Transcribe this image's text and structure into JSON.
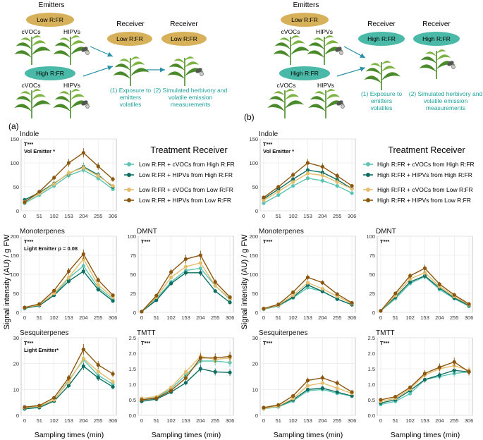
{
  "colors": {
    "low_ellipse": "#d7b05a",
    "high_ellipse": "#4bb9a8",
    "arrow": "#2c8fa8",
    "teal_text": "#1ea19a",
    "light_teal": "#5cc5b3",
    "dark_teal": "#0d6e61",
    "light_gold": "#e3bd6e",
    "dark_brown": "#8b560f",
    "plant": "#4a8a2a",
    "plant_light": "#7cb342"
  },
  "panel_a": {
    "label": "(a)",
    "diagram": {
      "emitters_title": "Emitters",
      "emitter_top": "Low R:FR",
      "emitter_bottom": "High R:FR",
      "cvocs": "cVOCs",
      "hipvs": "HIPVs",
      "receiver_title": "Receiver",
      "receiver_label": "Low R:FR",
      "step1": [
        "(1) Exposure to",
        "emitters",
        "volatiles"
      ],
      "step2": [
        "(2) Simulated herbivory and",
        "volatile emission",
        "measurements"
      ]
    },
    "legend": {
      "title": "Treatment Receiver",
      "entries": [
        "Low R:FR + cVOCs from High R:FR",
        "Low R:FR + HIPVs from High R:FR",
        "Low R:FR + cVOCs from Low R:FR",
        "Low R:FR + HIPVs from Low R:FR"
      ]
    }
  },
  "panel_b": {
    "label": "(b)",
    "diagram": {
      "emitters_title": "Emitters",
      "emitter_top": "Low R:FR",
      "emitter_bottom": "High R:FR",
      "cvocs": "cVOCs",
      "hipvs": "HIPVs",
      "receiver_title": "Receiver",
      "receiver_label": "High R:FR",
      "step1": [
        "(1) Exposure to",
        "emitters",
        "volatiles"
      ],
      "step2": [
        "(2) Simulated herbivory and",
        "volatile emission",
        "measurements"
      ]
    },
    "legend": {
      "title": "Treatment Receiver",
      "entries": [
        "High R:FR + cVOCs from High R:FR",
        "High R:FR + HIPVs from High R:FR",
        "High R:FR + cVOCs from Low R:FR",
        "High R:FR + HIPVs from Low R:FR"
      ]
    }
  },
  "shared_axes": {
    "ylabel": "Signal intensity (AU) / g FW",
    "xlabel": "Sampling times (min)"
  },
  "chart_data": [
    {
      "id": "a_indole",
      "type": "line",
      "title": "Indole",
      "annotations": [
        "T***",
        "Vol Emitter *"
      ],
      "x": [
        0,
        51,
        102,
        153,
        204,
        255,
        306
      ],
      "ylim": [
        0,
        150
      ],
      "yticks": [
        0,
        50,
        100,
        150
      ],
      "series": [
        {
          "name": "Low R:FR + cVOCs from High R:FR",
          "values": [
            16,
            33,
            52,
            74,
            85,
            68,
            45
          ]
        },
        {
          "name": "Low R:FR + HIPVs from High R:FR",
          "values": [
            23,
            38,
            57,
            78,
            92,
            75,
            50
          ]
        },
        {
          "name": "Low R:FR + cVOCs from Low R:FR",
          "values": [
            19,
            36,
            56,
            79,
            90,
            73,
            52
          ]
        },
        {
          "name": "Low R:FR + HIPVs from Low R:FR",
          "values": [
            18,
            40,
            69,
            100,
            121,
            93,
            66
          ]
        }
      ]
    },
    {
      "id": "a_mono",
      "type": "line",
      "title": "Monoterpenes",
      "annotations": [
        "T***",
        "Light Emitter p = 0.08"
      ],
      "x": [
        0,
        51,
        102,
        153,
        204,
        255,
        306
      ],
      "ylim": [
        0,
        200
      ],
      "yticks": [
        0,
        50,
        100,
        150,
        200
      ],
      "series": [
        {
          "name": "Low R:FR + cVOCs from High R:FR",
          "values": [
            10,
            18,
            45,
            90,
            122,
            65,
            35
          ]
        },
        {
          "name": "Low R:FR + HIPVs from High R:FR",
          "values": [
            11,
            18,
            45,
            82,
            108,
            60,
            30
          ]
        },
        {
          "name": "Low R:FR + cVOCs from Low R:FR",
          "values": [
            12,
            20,
            50,
            92,
            140,
            72,
            40
          ]
        },
        {
          "name": "Low R:FR + HIPVs from Low R:FR",
          "values": [
            13,
            22,
            57,
            108,
            153,
            85,
            45
          ]
        }
      ]
    },
    {
      "id": "a_dmnt",
      "type": "line",
      "title": "DMNT",
      "annotations": [
        "T***"
      ],
      "x": [
        0,
        51,
        102,
        153,
        204,
        255,
        306
      ],
      "ylim": [
        0,
        100
      ],
      "yticks": [
        0,
        25,
        50,
        75,
        100
      ],
      "series": [
        {
          "name": "Low R:FR + cVOCs from High R:FR",
          "values": [
            1,
            18,
            40,
            55,
            58,
            35,
            17
          ]
        },
        {
          "name": "Low R:FR + HIPVs from High R:FR",
          "values": [
            1,
            16,
            38,
            52,
            52,
            28,
            13
          ]
        },
        {
          "name": "Low R:FR + cVOCs from Low R:FR",
          "values": [
            1,
            20,
            46,
            60,
            65,
            35,
            18
          ]
        },
        {
          "name": "Low R:FR + HIPVs from Low R:FR",
          "values": [
            1,
            22,
            53,
            70,
            75,
            40,
            20
          ]
        }
      ]
    },
    {
      "id": "a_sesq",
      "type": "line",
      "title": "Sesquiterpenes",
      "annotations": [
        "T***",
        "Light Emitter*"
      ],
      "x": [
        0,
        51,
        102,
        153,
        204,
        255,
        306
      ],
      "ylim": [
        0,
        30
      ],
      "yticks": [
        0,
        10,
        20,
        30
      ],
      "series": [
        {
          "name": "Low R:FR + cVOCs from High R:FR",
          "values": [
            2.8,
            3.3,
            5.8,
            13.5,
            21.5,
            15.5,
            12
          ]
        },
        {
          "name": "Low R:FR + HIPVs from High R:FR",
          "values": [
            2.5,
            3.0,
            5.5,
            11.5,
            19,
            14.5,
            11
          ]
        },
        {
          "name": "Low R:FR + cVOCs from Low R:FR",
          "values": [
            3.0,
            3.5,
            6.0,
            13.0,
            22.0,
            17.0,
            13
          ]
        },
        {
          "name": "Low R:FR + HIPVs from Low R:FR",
          "values": [
            3.2,
            3.8,
            6.8,
            14.5,
            25.5,
            19.5,
            16
          ]
        }
      ]
    },
    {
      "id": "a_tmtt",
      "type": "line",
      "title": "TMTT",
      "annotations": [
        "T***"
      ],
      "x": [
        0,
        51,
        102,
        153,
        204,
        255,
        306
      ],
      "ylim": [
        0,
        2.5
      ],
      "yticks": [
        0.0,
        0.5,
        1.0,
        1.5,
        2.0,
        2.5
      ],
      "series": [
        {
          "name": "Low R:FR + cVOCs from High R:FR",
          "values": [
            0.5,
            0.58,
            0.85,
            1.3,
            1.75,
            1.75,
            1.7
          ]
        },
        {
          "name": "Low R:FR + HIPVs from High R:FR",
          "values": [
            0.45,
            0.52,
            0.75,
            1.05,
            1.5,
            1.4,
            1.38
          ]
        },
        {
          "name": "Low R:FR + cVOCs from Low R:FR",
          "values": [
            0.55,
            0.6,
            0.9,
            1.4,
            1.9,
            1.8,
            1.85
          ]
        },
        {
          "name": "Low R:FR + HIPVs from Low R:FR",
          "values": [
            0.5,
            0.55,
            0.8,
            1.2,
            1.85,
            1.85,
            1.9
          ]
        }
      ]
    },
    {
      "id": "b_indole",
      "type": "line",
      "title": "Indole",
      "annotations": [
        "T***",
        "Vol Emitter *"
      ],
      "x": [
        0,
        51,
        102,
        153,
        204,
        255,
        306
      ],
      "ylim": [
        0,
        150
      ],
      "yticks": [
        0,
        50,
        100,
        150
      ],
      "series": [
        {
          "name": "High R:FR + cVOCs from High R:FR",
          "values": [
            16,
            33,
            52,
            68,
            63,
            52,
            37
          ]
        },
        {
          "name": "High R:FR + HIPVs from High R:FR",
          "values": [
            25,
            45,
            66,
            85,
            80,
            65,
            46
          ]
        },
        {
          "name": "High R:FR + cVOCs from Low R:FR",
          "values": [
            22,
            40,
            60,
            78,
            74,
            60,
            46
          ]
        },
        {
          "name": "High R:FR + HIPVs from Low R:FR",
          "values": [
            28,
            50,
            75,
            100,
            92,
            73,
            52
          ]
        }
      ]
    },
    {
      "id": "b_mono",
      "type": "line",
      "title": "Monoterpenes",
      "annotations": [
        "T***"
      ],
      "x": [
        0,
        51,
        102,
        153,
        204,
        255,
        306
      ],
      "ylim": [
        0,
        200
      ],
      "yticks": [
        0,
        50,
        100,
        150,
        200
      ],
      "series": [
        {
          "name": "High R:FR + cVOCs from High R:FR",
          "values": [
            8,
            17,
            38,
            65,
            55,
            35,
            20
          ]
        },
        {
          "name": "High R:FR + HIPVs from High R:FR",
          "values": [
            9,
            18,
            40,
            72,
            55,
            35,
            20
          ]
        },
        {
          "name": "High R:FR + cVOCs from Low R:FR",
          "values": [
            9,
            19,
            45,
            78,
            62,
            42,
            23
          ]
        },
        {
          "name": "High R:FR + HIPVs from Low R:FR",
          "values": [
            10,
            21,
            53,
            92,
            78,
            48,
            25
          ]
        }
      ]
    },
    {
      "id": "b_dmnt",
      "type": "line",
      "title": "DMNT",
      "annotations": [
        "T***"
      ],
      "x": [
        0,
        51,
        102,
        153,
        204,
        255,
        306
      ],
      "ylim": [
        0,
        100
      ],
      "yticks": [
        0,
        25,
        50,
        75,
        100
      ],
      "series": [
        {
          "name": "High R:FR + cVOCs from High R:FR",
          "values": [
            2,
            18,
            38,
            47,
            30,
            18,
            8
          ]
        },
        {
          "name": "High R:FR + HIPVs from High R:FR",
          "values": [
            2,
            20,
            40,
            48,
            32,
            19,
            9
          ]
        },
        {
          "name": "High R:FR + cVOCs from Low R:FR",
          "values": [
            2,
            22,
            44,
            52,
            34,
            21,
            10
          ]
        },
        {
          "name": "High R:FR + HIPVs from Low R:FR",
          "values": [
            2,
            25,
            48,
            58,
            37,
            23,
            11
          ]
        }
      ]
    },
    {
      "id": "b_sesq",
      "type": "line",
      "title": "Sesquiterpenes",
      "annotations": [
        "T***"
      ],
      "x": [
        0,
        51,
        102,
        153,
        204,
        255,
        306
      ],
      "ylim": [
        0,
        30
      ],
      "yticks": [
        0,
        10,
        20,
        30
      ],
      "series": [
        {
          "name": "High R:FR + cVOCs from High R:FR",
          "values": [
            2.5,
            3.3,
            5.5,
            9.5,
            10.0,
            8.5,
            7.5
          ]
        },
        {
          "name": "High R:FR + HIPVs from High R:FR",
          "values": [
            2.8,
            3.5,
            6.0,
            10.0,
            10.5,
            9.0,
            7.5
          ]
        },
        {
          "name": "High R:FR + cVOCs from Low R:FR",
          "values": [
            2.6,
            3.6,
            6.5,
            11.5,
            12.5,
            10.5,
            8.5
          ]
        },
        {
          "name": "High R:FR + HIPVs from Low R:FR",
          "values": [
            3.0,
            4.0,
            7.5,
            13.5,
            14.5,
            12.5,
            9.0
          ]
        }
      ]
    },
    {
      "id": "b_tmtt",
      "type": "line",
      "title": "TMTT",
      "annotations": [
        "T***"
      ],
      "x": [
        0,
        51,
        102,
        153,
        204,
        255,
        306
      ],
      "ylim": [
        0,
        2.5
      ],
      "yticks": [
        0.0,
        0.5,
        1.0,
        1.5,
        2.0,
        2.5
      ],
      "series": [
        {
          "name": "High R:FR + cVOCs from High R:FR",
          "values": [
            0.35,
            0.45,
            0.7,
            1.15,
            1.25,
            1.35,
            1.4
          ]
        },
        {
          "name": "High R:FR + HIPVs from High R:FR",
          "values": [
            0.4,
            0.5,
            0.8,
            1.15,
            1.3,
            1.45,
            1.4
          ]
        },
        {
          "name": "High R:FR + cVOCs from Low R:FR",
          "values": [
            0.45,
            0.55,
            0.85,
            1.3,
            1.5,
            1.6,
            1.45
          ]
        },
        {
          "name": "High R:FR + HIPVs from Low R:FR",
          "values": [
            0.5,
            0.6,
            0.9,
            1.35,
            1.55,
            1.72,
            1.4
          ]
        }
      ]
    }
  ]
}
